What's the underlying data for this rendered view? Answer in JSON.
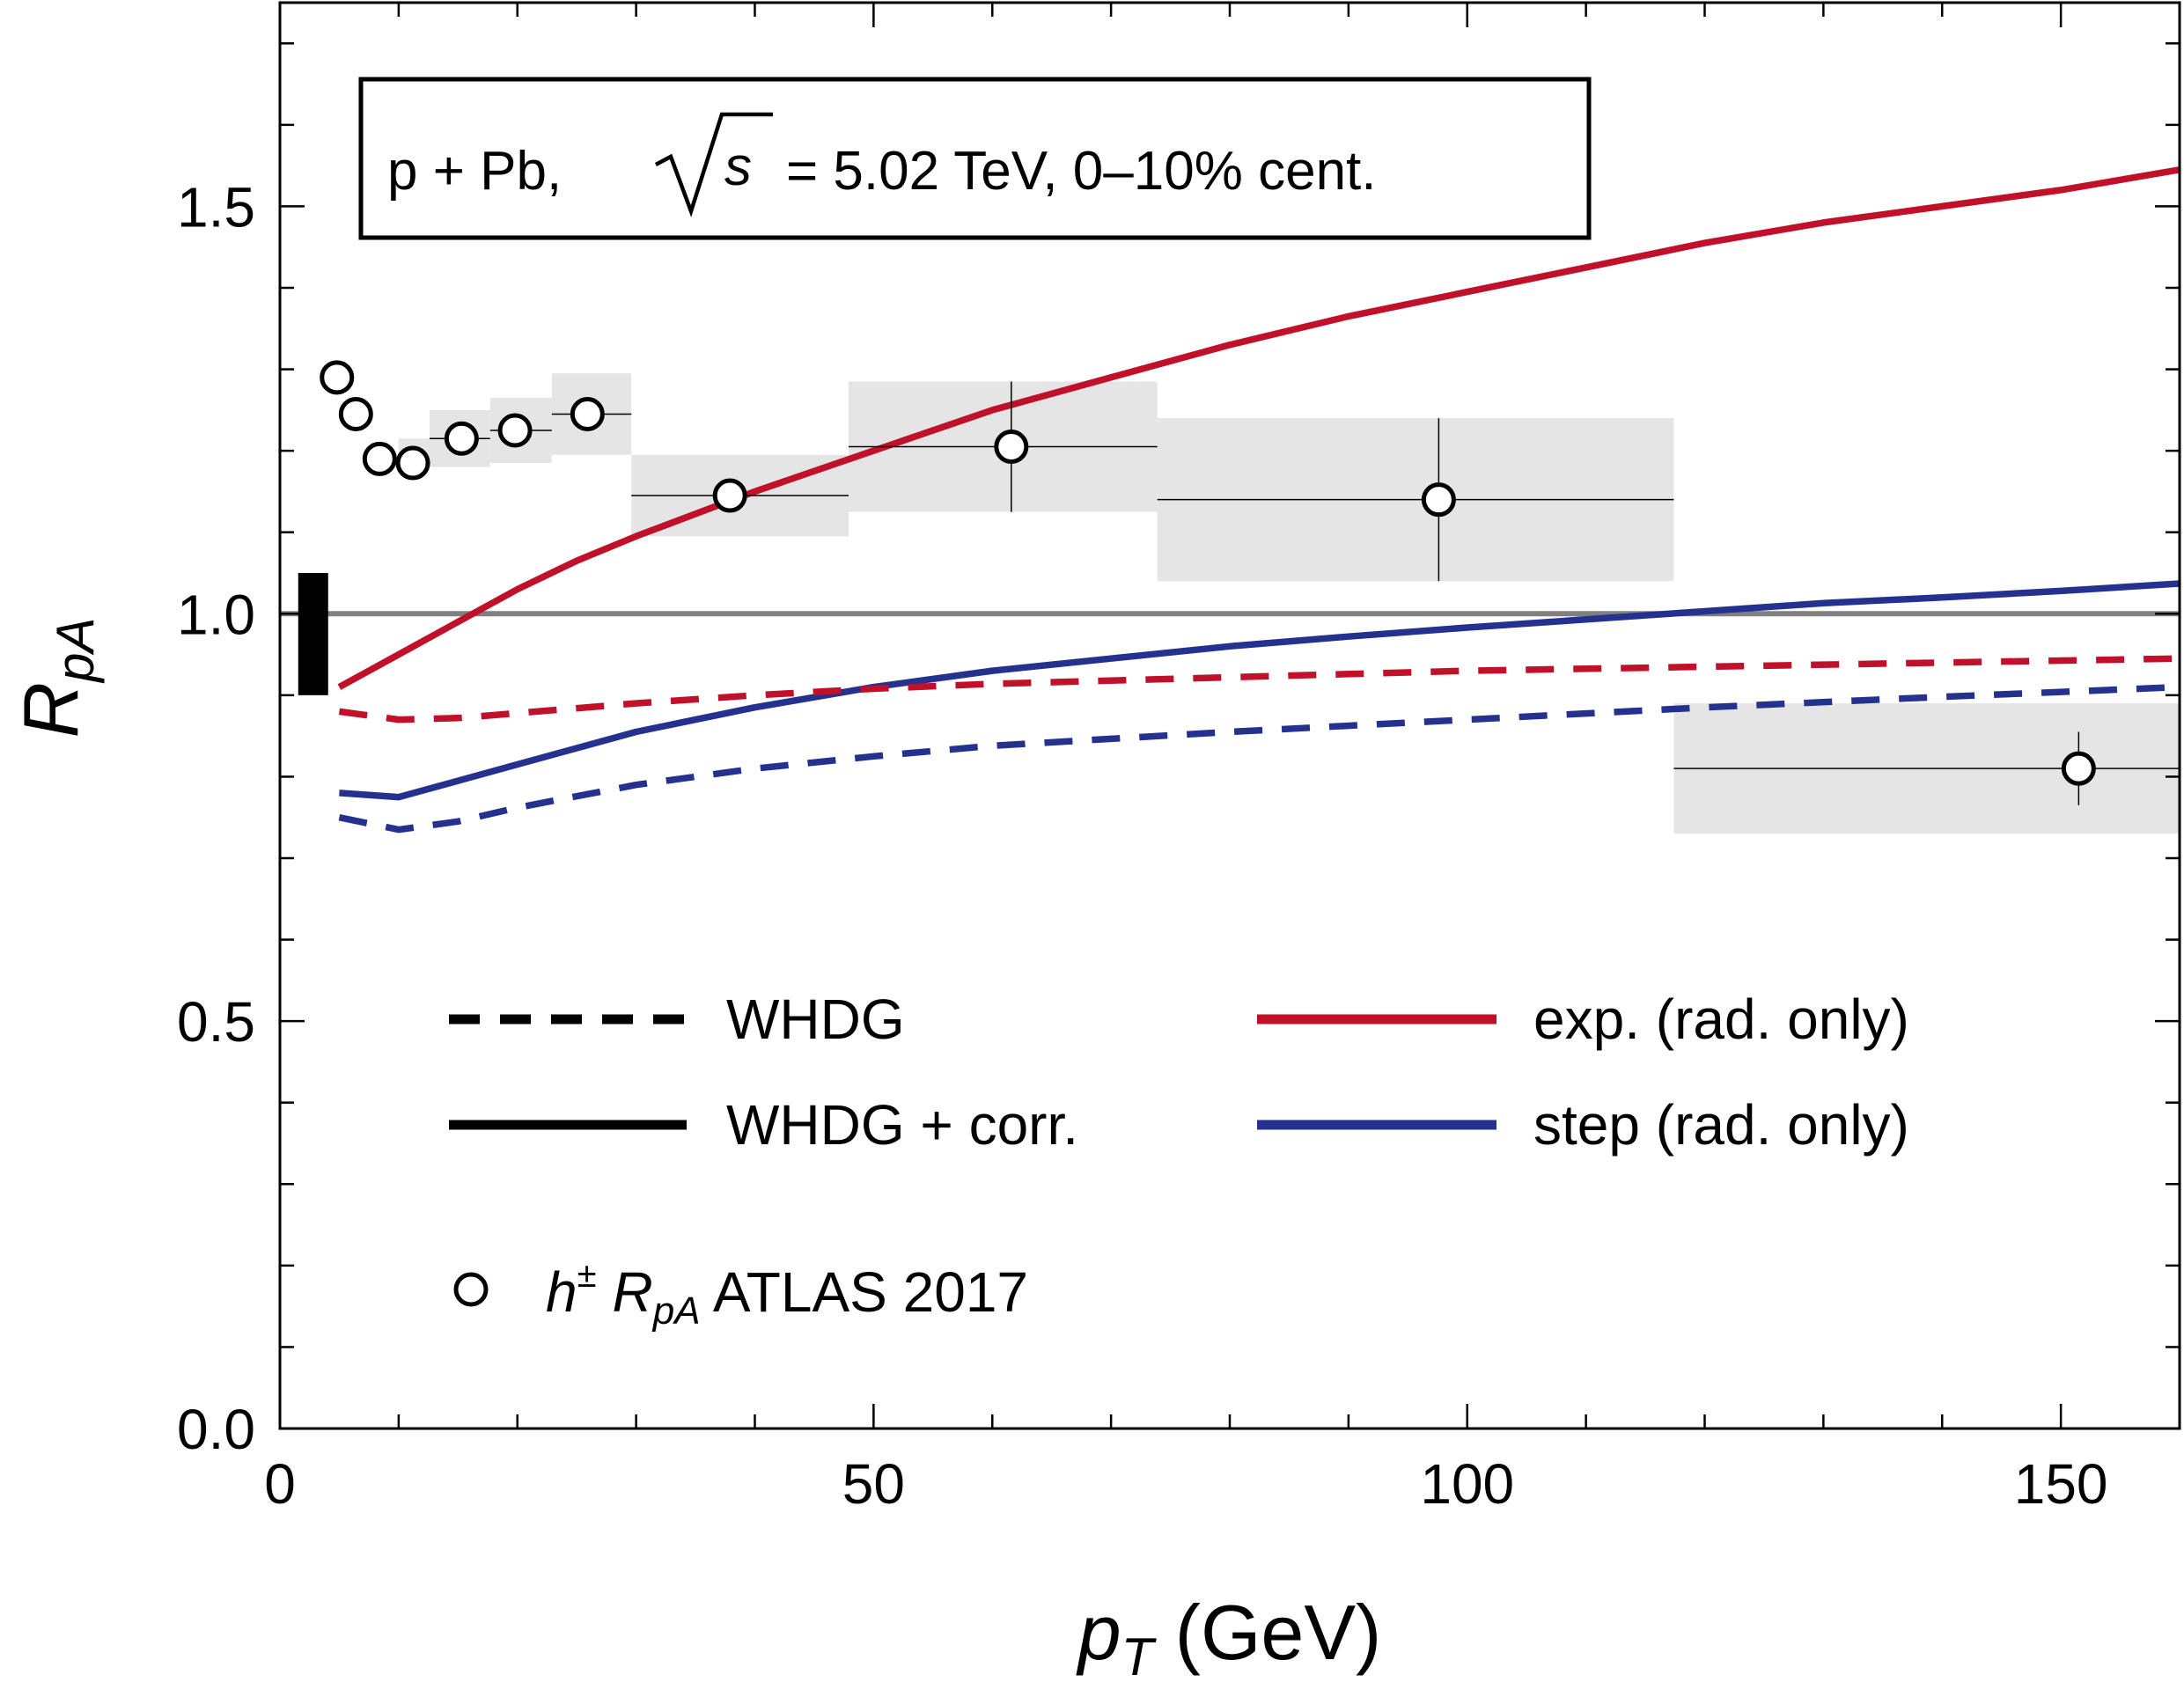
{
  "chart_data": {
    "type": "line",
    "xlim": [
      0,
      160
    ],
    "ylim": [
      0,
      1.75
    ],
    "x_major_ticks": [
      0,
      50,
      100,
      150
    ],
    "x_tick_labels": [
      "0",
      "50",
      "100",
      "150"
    ],
    "y_major_ticks": [
      0,
      0.5,
      1.0,
      1.5
    ],
    "y_tick_labels": [
      "0.0",
      "0.5",
      "1.0",
      "1.5"
    ],
    "xlabel": {
      "var": "p",
      "sub": "T",
      "unit": " (GeV)"
    },
    "ylabel": {
      "var": "R",
      "sub": "pA"
    },
    "info": {
      "prefix": "p + Pb,",
      "sqrt_var": "s",
      "suffix": "= 5.02 TeV, 0–10% cent."
    },
    "reference_line": {
      "y": 1.0,
      "color": "#808080"
    },
    "normalization_box": {
      "x": 2.8,
      "y_low": 0.9,
      "y_high": 1.05
    },
    "colors": {
      "red": "#c0102a",
      "blue": "#24318f",
      "band": "#e5e5e5"
    },
    "series": [
      {
        "name": "exp. (rad. only)",
        "model": "WHDG + corr.",
        "color": "red",
        "dash": false,
        "x": [
          5,
          10,
          15,
          20,
          25,
          30,
          40,
          50,
          60,
          70,
          80,
          90,
          100,
          110,
          120,
          130,
          140,
          150,
          160
        ],
        "y": [
          0.91,
          0.95,
          0.99,
          1.03,
          1.065,
          1.095,
          1.15,
          1.2,
          1.25,
          1.29,
          1.33,
          1.365,
          1.395,
          1.425,
          1.455,
          1.48,
          1.5,
          1.52,
          1.545
        ]
      },
      {
        "name": "step (rad. only)",
        "model": "WHDG + corr.",
        "color": "blue",
        "dash": false,
        "x": [
          5,
          10,
          15,
          20,
          25,
          30,
          40,
          50,
          60,
          70,
          80,
          90,
          100,
          110,
          120,
          130,
          140,
          150,
          160
        ],
        "y": [
          0.78,
          0.775,
          0.795,
          0.815,
          0.835,
          0.855,
          0.885,
          0.91,
          0.93,
          0.945,
          0.96,
          0.972,
          0.983,
          0.993,
          1.003,
          1.013,
          1.02,
          1.028,
          1.037
        ]
      },
      {
        "name": "exp. (rad. only)",
        "model": "WHDG",
        "color": "red",
        "dash": true,
        "x": [
          5,
          10,
          15,
          20,
          30,
          40,
          50,
          60,
          80,
          100,
          120,
          140,
          160
        ],
        "y": [
          0.88,
          0.87,
          0.872,
          0.878,
          0.89,
          0.9,
          0.908,
          0.914,
          0.922,
          0.93,
          0.935,
          0.94,
          0.945
        ]
      },
      {
        "name": "step (rad. only)",
        "model": "WHDG",
        "color": "blue",
        "dash": true,
        "x": [
          5,
          10,
          15,
          20,
          30,
          40,
          50,
          60,
          80,
          100,
          120,
          140,
          160
        ],
        "y": [
          0.75,
          0.735,
          0.745,
          0.762,
          0.79,
          0.81,
          0.825,
          0.838,
          0.855,
          0.87,
          0.885,
          0.898,
          0.91
        ]
      }
    ],
    "data_points": {
      "name": "h± RpA ATLAS 2017",
      "points": [
        {
          "x": 4.8,
          "y": 1.29,
          "xlo": 4.8,
          "xhi": 4.8,
          "yerr": 0.005,
          "sys": null
        },
        {
          "x": 6.4,
          "y": 1.245,
          "xlo": 6.4,
          "xhi": 6.4,
          "yerr": 0.005,
          "sys": null
        },
        {
          "x": 8.4,
          "y": 1.19,
          "xlo": 8.4,
          "xhi": 8.4,
          "yerr": 0.005,
          "sys": null
        },
        {
          "x": 11.2,
          "y": 1.185,
          "xlo": 10,
          "xhi": 12.6,
          "yerr": 0.006,
          "sys": [
            0.01,
            0.03
          ]
        },
        {
          "x": 15.3,
          "y": 1.215,
          "xlo": 12.6,
          "xhi": 17.7,
          "yerr": 0.008,
          "sys": [
            0.035,
            0.035
          ]
        },
        {
          "x": 19.8,
          "y": 1.225,
          "xlo": 17.7,
          "xhi": 22.9,
          "yerr": 0.01,
          "sys": [
            0.04,
            0.04
          ]
        },
        {
          "x": 25.9,
          "y": 1.245,
          "xlo": 22.9,
          "xhi": 29.6,
          "yerr": 0.015,
          "sys": [
            0.05,
            0.05
          ]
        },
        {
          "x": 37.9,
          "y": 1.145,
          "xlo": 29.6,
          "xhi": 47.9,
          "yerr": 0.015,
          "sys": [
            0.05,
            0.05
          ]
        },
        {
          "x": 61.6,
          "y": 1.205,
          "xlo": 47.9,
          "xhi": 73.9,
          "yerr": 0.08,
          "sys": [
            0.08,
            0.08
          ]
        },
        {
          "x": 97.6,
          "y": 1.14,
          "xlo": 73.9,
          "xhi": 117.4,
          "yerr": 0.1,
          "sys": [
            0.1,
            0.1
          ]
        },
        {
          "x": 151.5,
          "y": 0.81,
          "xlo": 117.4,
          "xhi": 160,
          "yerr": 0.045,
          "sys": [
            0.08,
            0.08
          ]
        }
      ]
    },
    "legend": {
      "whdg": "WHDG",
      "whdg_corr": "WHDG + corr.",
      "exp": "exp. (rad. only)",
      "step": "step (rad. only)",
      "data_prefix": "h",
      "data_sup": "±",
      "data_var": "R",
      "data_sub": "pA",
      "data_suffix": " ATLAS 2017"
    }
  }
}
